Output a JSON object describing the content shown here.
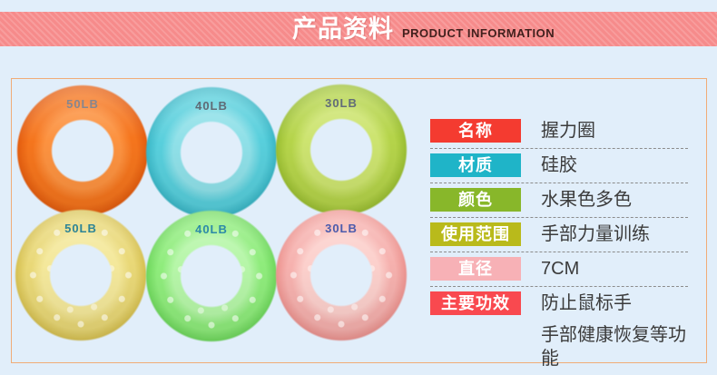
{
  "banner": {
    "title_zh": "产品资料",
    "title_en": "PRODUCT INFORMATION",
    "bg_color": "#f68b8b",
    "stripe_color": "#f89d9d",
    "title_color": "#ffffff",
    "subtitle_color": "#42201d"
  },
  "page": {
    "background_color": "#e1eefa",
    "frame_border_color": "#f0ac77"
  },
  "rings": [
    {
      "label": "50LB",
      "label_color": "#87868e",
      "main": "#f5751d",
      "light": "#fc9240",
      "dark": "#e35c0e",
      "textured": false
    },
    {
      "label": "40LB",
      "label_color": "#5f6b76",
      "main": "#58cfdc",
      "light": "#8fe0e8",
      "dark": "#39b6c6",
      "textured": false
    },
    {
      "label": "30LB",
      "label_color": "#626c78",
      "main": "#b5d44a",
      "light": "#cde470",
      "dark": "#9abe31",
      "textured": false
    },
    {
      "label": "50LB",
      "label_color": "#2d8496",
      "main": "#e9d877",
      "light": "#f4e89b",
      "dark": "#d6c050",
      "textured": true
    },
    {
      "label": "40LB",
      "label_color": "#2d8aa8",
      "main": "#8fec7c",
      "light": "#b6f6a8",
      "dark": "#6ed75c",
      "textured": true
    },
    {
      "label": "30LB",
      "label_color": "#4b5bac",
      "main": "#f6b1ae",
      "light": "#fcd0cc",
      "dark": "#ec928e",
      "textured": true
    }
  ],
  "specs": {
    "rows": [
      {
        "label": "名称",
        "label_bg": "#f43b30",
        "value_lines": [
          "握力圈"
        ]
      },
      {
        "label": "材质",
        "label_bg": "#1fb4c8",
        "value_lines": [
          "硅胶"
        ]
      },
      {
        "label": "颜色",
        "label_bg": "#88b72a",
        "value_lines": [
          "水果色多色"
        ]
      },
      {
        "label": "使用范围",
        "label_bg": "#b9ba1b",
        "value_lines": [
          "手部力量训练"
        ]
      },
      {
        "label": "直径",
        "label_bg": "#f7b1b6",
        "value_lines": [
          "7CM"
        ]
      },
      {
        "label": "主要功效",
        "label_bg": "#f9494f",
        "value_lines": [
          "防止鼠标手",
          "手部健康恢复等功能"
        ]
      }
    ]
  }
}
